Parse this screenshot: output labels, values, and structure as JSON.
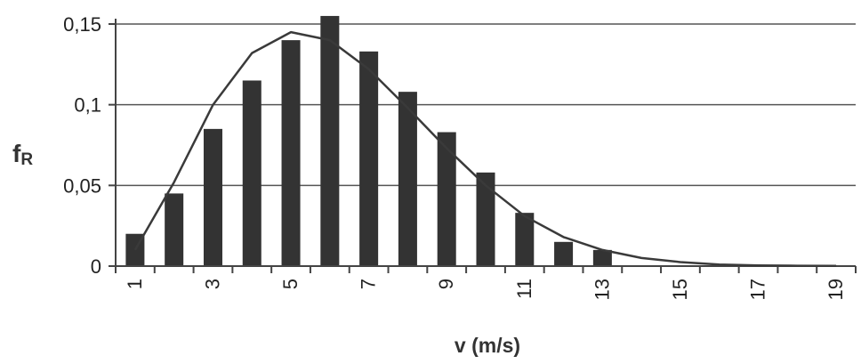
{
  "chart_data": {
    "type": "bar",
    "xlabel": "v (m/s)",
    "ylabel": "fR",
    "ylabel_main": "f",
    "ylabel_sub": "R",
    "ylim": [
      0,
      0.15
    ],
    "y_ticks": [
      0,
      0.05,
      0.1,
      0.15
    ],
    "y_tick_labels": [
      "0",
      "0,05",
      "0,1",
      "0,15"
    ],
    "x_tick_labels": [
      "1",
      "3",
      "5",
      "7",
      "9",
      "11",
      "13",
      "15",
      "17",
      "19"
    ],
    "grid": "horizontal",
    "categories": [
      1,
      2,
      3,
      4,
      5,
      6,
      7,
      8,
      9,
      10,
      11,
      12,
      13,
      14,
      15,
      16,
      17,
      18,
      19
    ],
    "series": [
      {
        "type": "bar",
        "values": [
          0.02,
          0.045,
          0.085,
          0.115,
          0.14,
          0.155,
          0.133,
          0.108,
          0.083,
          0.058,
          0.033,
          0.015,
          0.01,
          0,
          0,
          0,
          0,
          0,
          0
        ]
      },
      {
        "type": "line",
        "values": [
          0.01,
          0.052,
          0.1,
          0.132,
          0.145,
          0.14,
          0.122,
          0.098,
          0.073,
          0.05,
          0.031,
          0.018,
          0.01,
          0.005,
          0.0025,
          0.001,
          0.0004,
          0.0002,
          0.0001
        ]
      }
    ],
    "colors": {
      "bar": "#333333",
      "line": "#3a3a3a",
      "grid": "#555555",
      "axis": "#444444"
    }
  }
}
